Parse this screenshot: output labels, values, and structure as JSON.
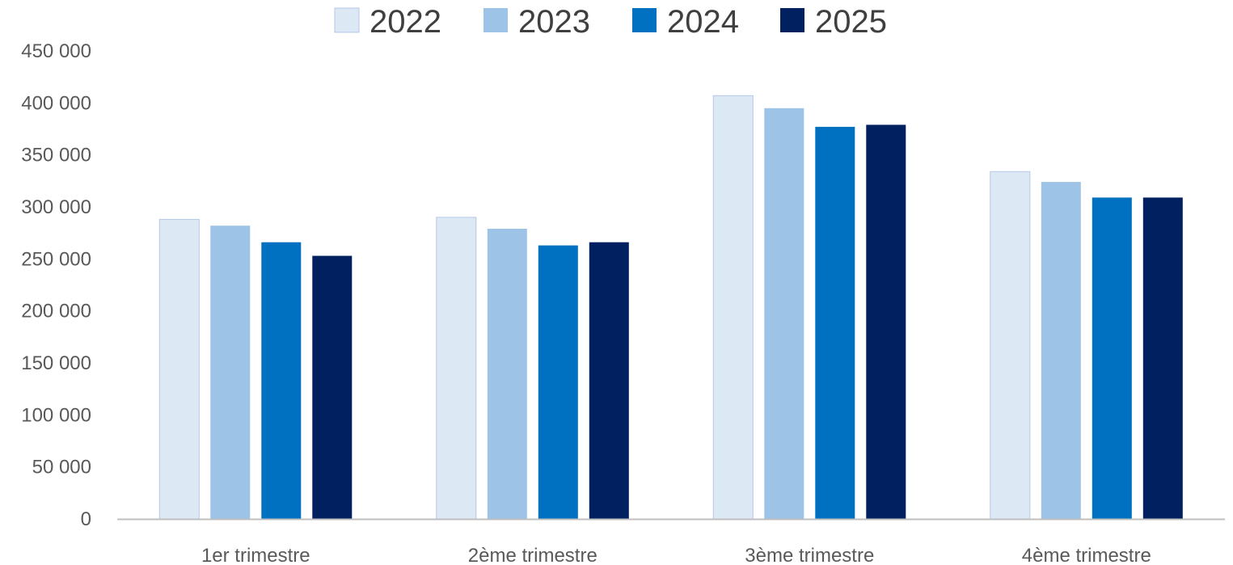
{
  "chart_data": {
    "type": "bar",
    "title": "",
    "xlabel": "",
    "ylabel": "",
    "categories": [
      "1er trimestre",
      "2ème trimestre",
      "3ème trimestre",
      "4ème trimestre"
    ],
    "series": [
      {
        "name": "2022",
        "color": "#DDE8F5",
        "values": [
          288000,
          290000,
          407000,
          334000
        ]
      },
      {
        "name": "2023",
        "color": "#9DC3E6",
        "values": [
          282000,
          279000,
          395000,
          324000
        ]
      },
      {
        "name": "2024",
        "color": "#0070C0",
        "values": [
          266000,
          263000,
          377000,
          309000
        ]
      },
      {
        "name": "2025",
        "color": "#002060",
        "values": [
          253000,
          266000,
          379000,
          309000
        ]
      }
    ],
    "ylim": [
      0,
      450000
    ],
    "yticks": [
      0,
      50000,
      100000,
      150000,
      200000,
      250000,
      300000,
      350000,
      400000,
      450000
    ],
    "ytick_labels": [
      "0",
      "50 000",
      "100 000",
      "150 000",
      "200 000",
      "250 000",
      "300 000",
      "350 000",
      "400 000",
      "450 000"
    ],
    "grid": false,
    "legend_position": "top"
  }
}
